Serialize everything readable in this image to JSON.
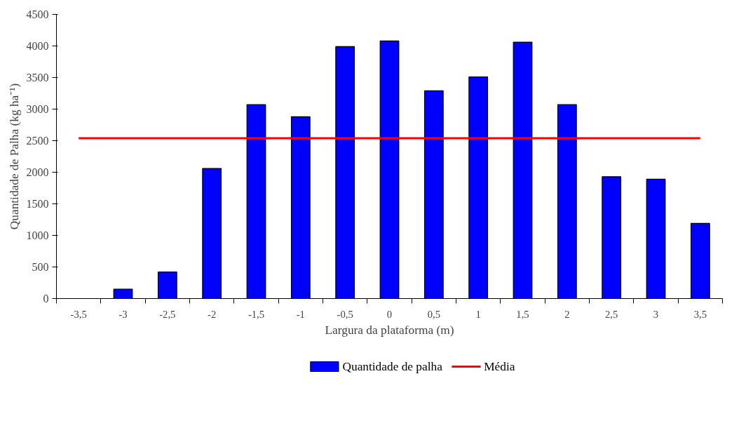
{
  "chart_data": {
    "type": "bar",
    "xlabel": "Largura da plataforma (m)",
    "ylabel": "Quantidade de Palha (kg ha⁻¹)",
    "categories": [
      "-3,5",
      "-3",
      "-2,5",
      "-2",
      "-1,5",
      "-1",
      "-0,5",
      "0",
      "0,5",
      "1",
      "1,5",
      "2",
      "2,5",
      "3",
      "3,5"
    ],
    "series": [
      {
        "name": "Quantidade de palha",
        "color": "#0000ff",
        "values": [
          null,
          150,
          420,
          2060,
          3070,
          2880,
          3990,
          4080,
          3290,
          3510,
          4060,
          3070,
          1930,
          1890,
          1190
        ]
      },
      {
        "name": "Média",
        "type": "line",
        "color": "#ff0000",
        "values": [
          2540,
          2540,
          2540,
          2540,
          2540,
          2540,
          2540,
          2540,
          2540,
          2540,
          2540,
          2540,
          2540,
          2540,
          2540
        ]
      }
    ],
    "ylim": [
      0,
      4500
    ],
    "yticks": [
      0,
      500,
      1000,
      1500,
      2000,
      2500,
      3000,
      3500,
      4000,
      4500
    ],
    "grid": false,
    "legend": "bottom"
  }
}
